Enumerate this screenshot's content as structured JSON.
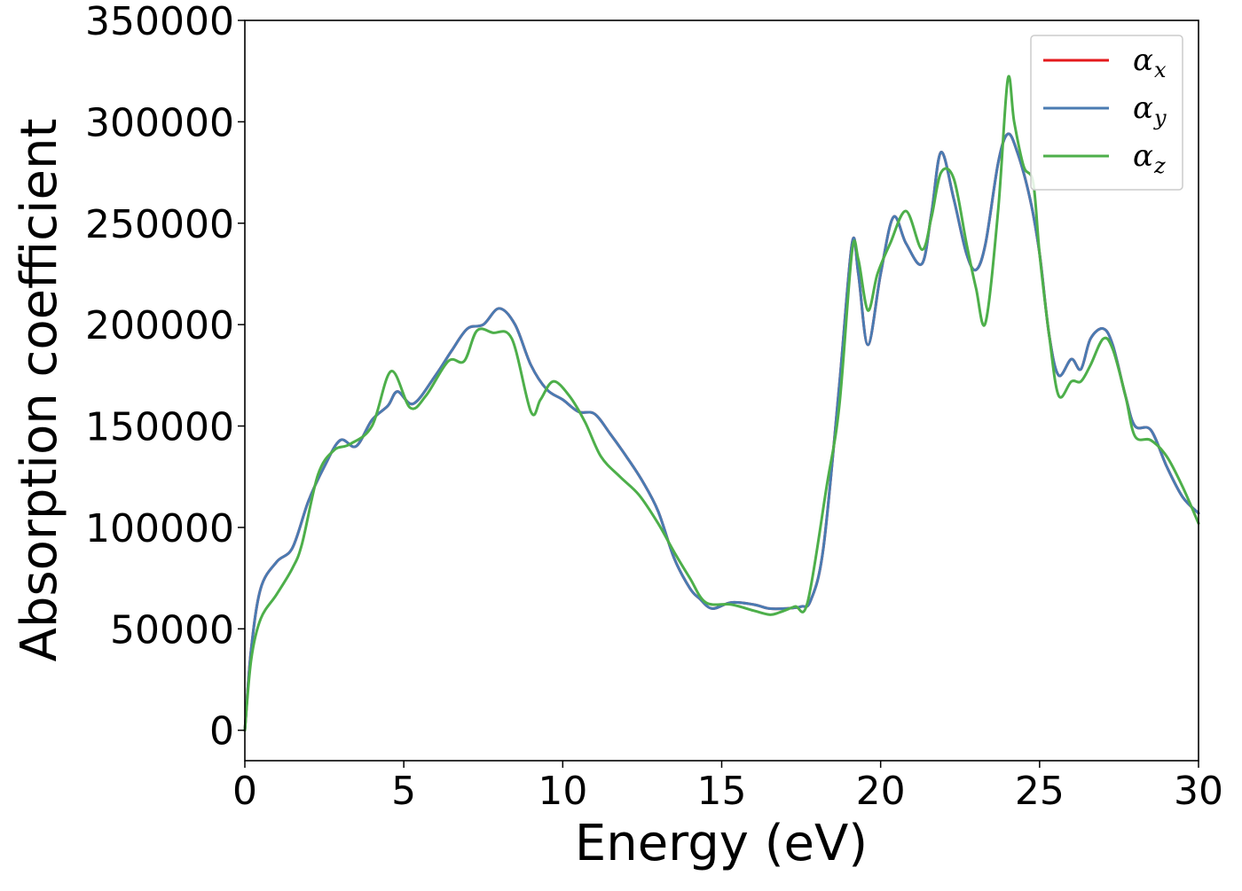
{
  "chart_data": {
    "type": "line",
    "xlabel": "Energy (eV)",
    "ylabel": "Absorption coefficient",
    "xlim": [
      0,
      30
    ],
    "ylim": [
      -15000,
      350000
    ],
    "xticks": [
      0,
      5,
      10,
      15,
      20,
      25,
      30
    ],
    "yticks": [
      0,
      50000,
      100000,
      150000,
      200000,
      250000,
      300000,
      350000
    ],
    "legend_position": "top-right",
    "grid": false,
    "series": [
      {
        "name": "α_x",
        "legend_base": "α",
        "legend_sub": "x",
        "color": "#e41a1c",
        "x": [
          0,
          0.2,
          0.5,
          1,
          1.5,
          2,
          2.5,
          3,
          3.5,
          4,
          4.5,
          4.8,
          5.3,
          6,
          6.5,
          7,
          7.5,
          8,
          8.5,
          9,
          9.5,
          10,
          10.5,
          11,
          11.5,
          12,
          12.5,
          13,
          13.5,
          14,
          14.3,
          14.7,
          15.3,
          16,
          16.5,
          17,
          17.5,
          17.8,
          18.2,
          18.7,
          19.1,
          19.3,
          19.6,
          20,
          20.4,
          20.8,
          21.3,
          21.6,
          21.9,
          22.3,
          22.7,
          23,
          23.3,
          23.7,
          24,
          24.3,
          24.7,
          25,
          25.3,
          25.6,
          26,
          26.3,
          26.6,
          27,
          27.3,
          27.7,
          28,
          28.5,
          29,
          29.5,
          30
        ],
        "y": [
          0,
          40000,
          70000,
          83000,
          90000,
          113000,
          130000,
          143000,
          140000,
          153000,
          160000,
          167000,
          161000,
          175000,
          187000,
          198000,
          200000,
          208000,
          200000,
          180000,
          168000,
          163000,
          157000,
          156000,
          146000,
          135000,
          123000,
          108000,
          85000,
          70000,
          65000,
          60000,
          63000,
          62000,
          60000,
          60000,
          61000,
          64000,
          90000,
          170000,
          240000,
          225000,
          190000,
          225000,
          253000,
          240000,
          230000,
          255000,
          285000,
          262000,
          235000,
          227000,
          240000,
          280000,
          294000,
          285000,
          262000,
          235000,
          195000,
          175000,
          183000,
          178000,
          193000,
          198000,
          190000,
          165000,
          150000,
          148000,
          130000,
          115000,
          107000
        ]
      },
      {
        "name": "α_y",
        "legend_base": "α",
        "legend_sub": "y",
        "color": "#4a7bb2",
        "x": [
          0,
          0.2,
          0.5,
          1,
          1.5,
          2,
          2.5,
          3,
          3.5,
          4,
          4.5,
          4.8,
          5.3,
          6,
          6.5,
          7,
          7.5,
          8,
          8.5,
          9,
          9.5,
          10,
          10.5,
          11,
          11.5,
          12,
          12.5,
          13,
          13.5,
          14,
          14.3,
          14.7,
          15.3,
          16,
          16.5,
          17,
          17.5,
          17.8,
          18.2,
          18.7,
          19.1,
          19.3,
          19.6,
          20,
          20.4,
          20.8,
          21.3,
          21.6,
          21.9,
          22.3,
          22.7,
          23,
          23.3,
          23.7,
          24,
          24.3,
          24.7,
          25,
          25.3,
          25.6,
          26,
          26.3,
          26.6,
          27,
          27.3,
          27.7,
          28,
          28.5,
          29,
          29.5,
          30
        ],
        "y": [
          0,
          40000,
          70000,
          83000,
          90000,
          113000,
          130000,
          143000,
          140000,
          153000,
          160000,
          167000,
          161000,
          175000,
          187000,
          198000,
          200000,
          208000,
          200000,
          180000,
          168000,
          163000,
          157000,
          156000,
          146000,
          135000,
          123000,
          108000,
          85000,
          70000,
          65000,
          60000,
          63000,
          62000,
          60000,
          60000,
          61000,
          64000,
          90000,
          170000,
          240000,
          225000,
          190000,
          225000,
          253000,
          240000,
          230000,
          255000,
          285000,
          262000,
          235000,
          227000,
          240000,
          280000,
          294000,
          285000,
          262000,
          235000,
          195000,
          175000,
          183000,
          178000,
          193000,
          198000,
          190000,
          165000,
          150000,
          148000,
          130000,
          115000,
          107000
        ]
      },
      {
        "name": "α_z",
        "legend_base": "α",
        "legend_sub": "z",
        "color": "#4daf4a",
        "x": [
          0,
          0.2,
          0.5,
          1,
          1.5,
          1.8,
          2.3,
          2.8,
          3.3,
          4,
          4.6,
          5.2,
          5.7,
          6.4,
          6.9,
          7.3,
          7.8,
          8.4,
          9,
          9.3,
          9.7,
          10.2,
          10.7,
          11.2,
          11.8,
          12.4,
          13,
          13.5,
          14,
          14.5,
          15.3,
          16,
          16.5,
          16.8,
          17.3,
          17.7,
          18.3,
          18.7,
          19.1,
          19.3,
          19.6,
          19.9,
          20.3,
          20.8,
          21.3,
          21.6,
          21.9,
          22.3,
          22.7,
          23,
          23.3,
          23.7,
          24,
          24.2,
          24.5,
          24.8,
          25,
          25.3,
          25.6,
          26,
          26.3,
          26.6,
          27,
          27.3,
          27.7,
          28,
          28.5,
          29,
          29.5,
          30
        ],
        "y": [
          0,
          35000,
          55000,
          67000,
          80000,
          92000,
          126000,
          138000,
          141000,
          150000,
          177000,
          159000,
          165000,
          182000,
          182000,
          197000,
          196000,
          193000,
          157000,
          163000,
          172000,
          165000,
          152000,
          135000,
          125000,
          116000,
          102000,
          88000,
          75000,
          63000,
          62000,
          59000,
          57000,
          58000,
          61000,
          63000,
          120000,
          160000,
          236000,
          232000,
          207000,
          225000,
          240000,
          256000,
          237000,
          253000,
          275000,
          272000,
          240000,
          218000,
          201000,
          257000,
          321000,
          300000,
          278000,
          270000,
          235000,
          195000,
          165000,
          172000,
          172000,
          180000,
          193000,
          188000,
          165000,
          145000,
          143000,
          135000,
          120000,
          102000
        ]
      }
    ]
  }
}
